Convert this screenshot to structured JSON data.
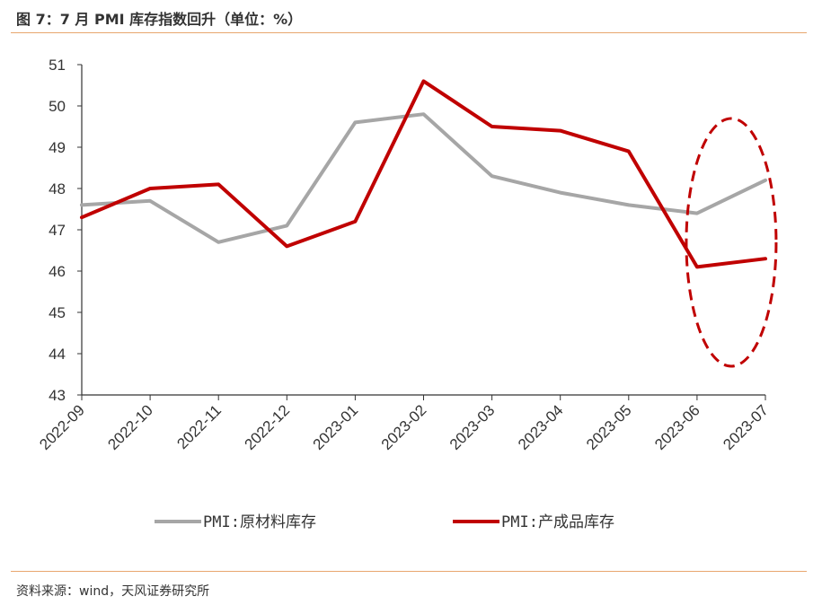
{
  "header": {
    "title": "图 7：7 月 PMI 库存指数回升（单位：%）"
  },
  "footer": {
    "source": "资料来源：wind，天风证券研究所"
  },
  "colors": {
    "series1": "#a6a6a6",
    "series2": "#c00000",
    "rule": "#e8a66e"
  },
  "chart_data": {
    "type": "line",
    "title": "",
    "xlabel": "",
    "ylabel": "",
    "categories": [
      "2022-09",
      "2022-10",
      "2022-11",
      "2022-12",
      "2023-01",
      "2023-02",
      "2023-03",
      "2023-04",
      "2023-05",
      "2023-06",
      "2023-07"
    ],
    "ylim": [
      43,
      51
    ],
    "yticks": [
      43,
      44,
      45,
      46,
      47,
      48,
      49,
      50,
      51
    ],
    "grid": false,
    "legend_position": "bottom",
    "series": [
      {
        "name": "PMI:原材料库存",
        "values": [
          47.6,
          47.7,
          46.7,
          47.1,
          49.6,
          49.8,
          48.3,
          47.9,
          47.6,
          47.4,
          48.2
        ]
      },
      {
        "name": "PMI:产成品库存",
        "values": [
          47.3,
          48.0,
          48.1,
          46.6,
          47.2,
          50.6,
          49.5,
          49.4,
          48.9,
          46.1,
          46.3
        ]
      }
    ],
    "annotations": [
      {
        "type": "dashed-ellipse",
        "around_categories": [
          "2023-06",
          "2023-07"
        ]
      }
    ]
  }
}
